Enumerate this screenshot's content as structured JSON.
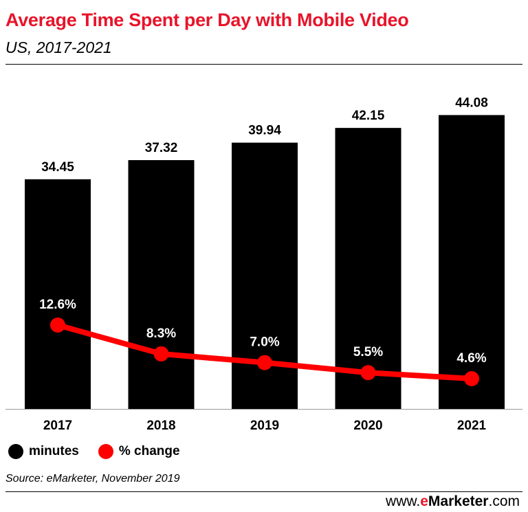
{
  "header": {
    "title": "Average Time Spent per Day with Mobile Video",
    "subtitle": "US, 2017-2021"
  },
  "legend": {
    "items": [
      {
        "label": "minutes",
        "color": "#000000"
      },
      {
        "label": "% change",
        "color": "#ff0000"
      }
    ]
  },
  "footer": {
    "source": "Source: eMarketer, November 2019",
    "brand_prefix": "www.",
    "brand_accent": "e",
    "brand_name": "Marketer",
    "brand_suffix": ".com"
  },
  "chart_data": {
    "type": "bar",
    "categories": [
      "2017",
      "2018",
      "2019",
      "2020",
      "2021"
    ],
    "series": [
      {
        "name": "minutes",
        "type": "bar",
        "color": "#000000",
        "values": [
          34.45,
          37.32,
          39.94,
          42.15,
          44.08
        ],
        "labels": [
          "34.45",
          "37.32",
          "39.94",
          "42.15",
          "44.08"
        ]
      },
      {
        "name": "% change",
        "type": "line",
        "color": "#ff0000",
        "values": [
          12.6,
          8.3,
          7.0,
          5.5,
          4.6
        ],
        "labels": [
          "12.6%",
          "8.3%",
          "7.0%",
          "5.5%",
          "4.6%"
        ]
      }
    ],
    "title": "Average Time Spent per Day with Mobile Video",
    "subtitle": "US, 2017-2021",
    "grid": false,
    "legend_position": "bottom-left"
  }
}
